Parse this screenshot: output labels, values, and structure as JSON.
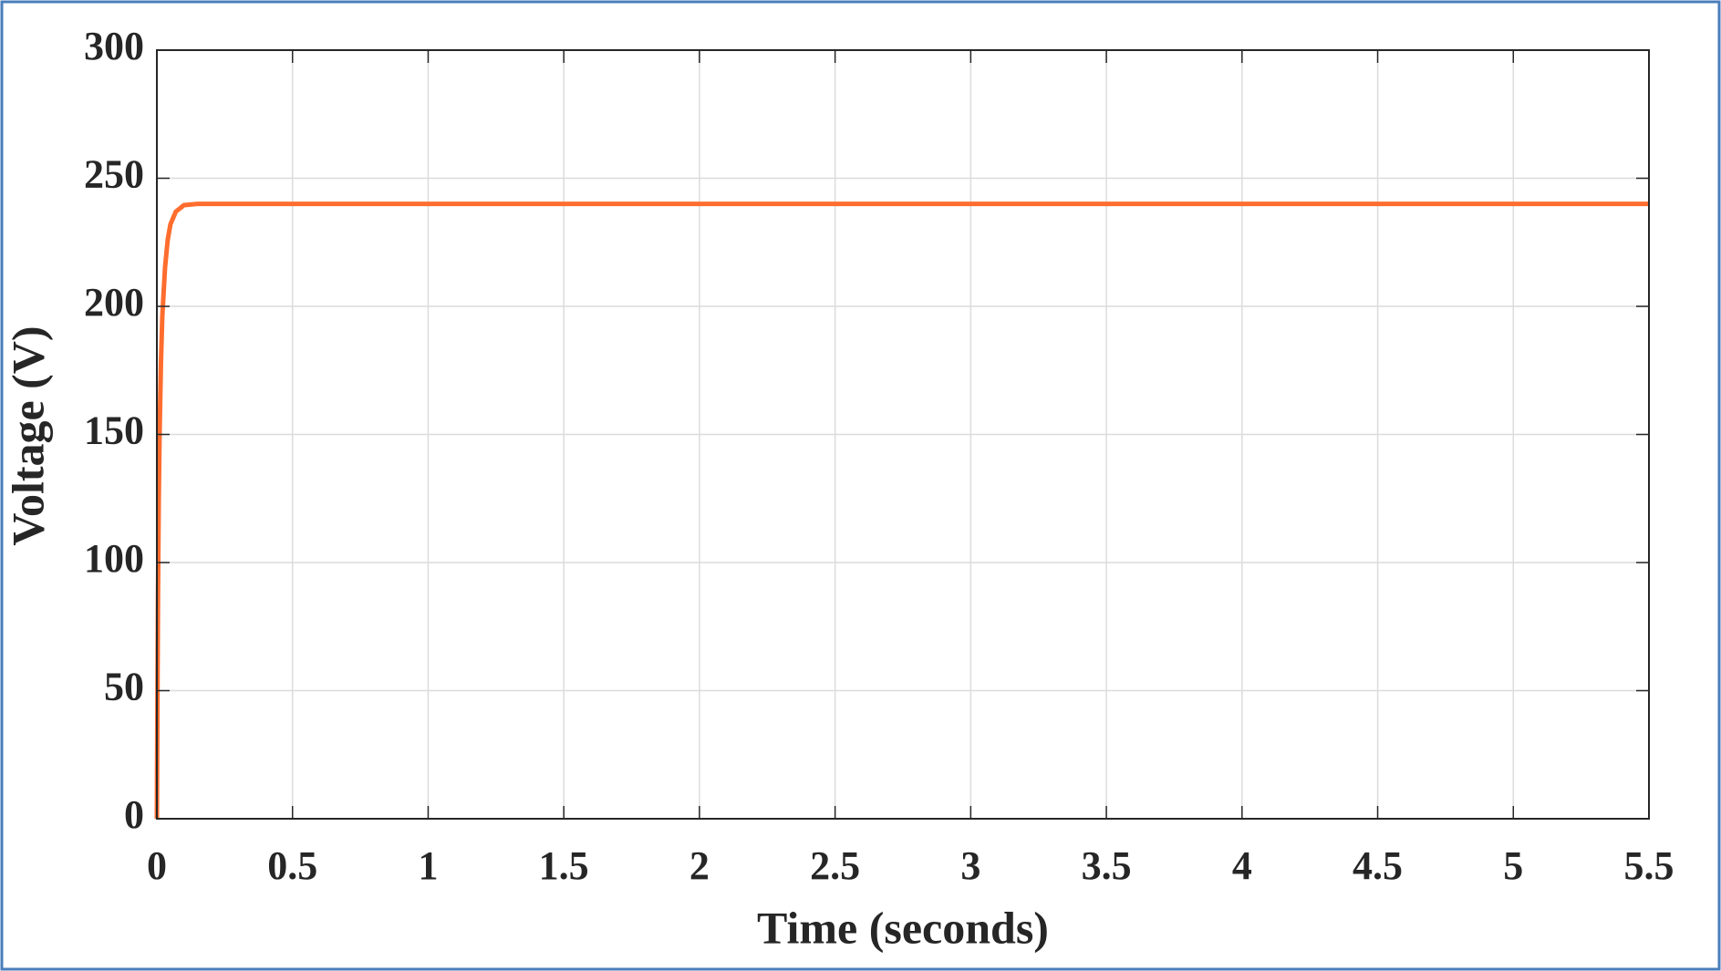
{
  "chart_data": {
    "type": "line",
    "x_label": "Time (seconds)",
    "y_label": "Voltage (V)",
    "x": [
      0,
      0.002,
      0.004,
      0.007,
      0.01,
      0.015,
      0.02,
      0.03,
      0.04,
      0.05,
      0.07,
      0.1,
      0.15,
      5.5
    ],
    "series": [
      {
        "name": "Voltage",
        "color": "#ff6d2e",
        "values": [
          0,
          45,
          85,
          125,
          150,
          178,
          196,
          215,
          226,
          232,
          237,
          239.5,
          240,
          240
        ]
      }
    ],
    "xlim": [
      0,
      5.5
    ],
    "xticks": [
      0,
      0.5,
      1,
      1.5,
      2,
      2.5,
      3,
      3.5,
      4,
      4.5,
      5,
      5.5
    ],
    "ylim": [
      0,
      300
    ],
    "yticks": [
      0,
      50,
      100,
      150,
      200,
      250,
      300
    ],
    "grid": true
  }
}
